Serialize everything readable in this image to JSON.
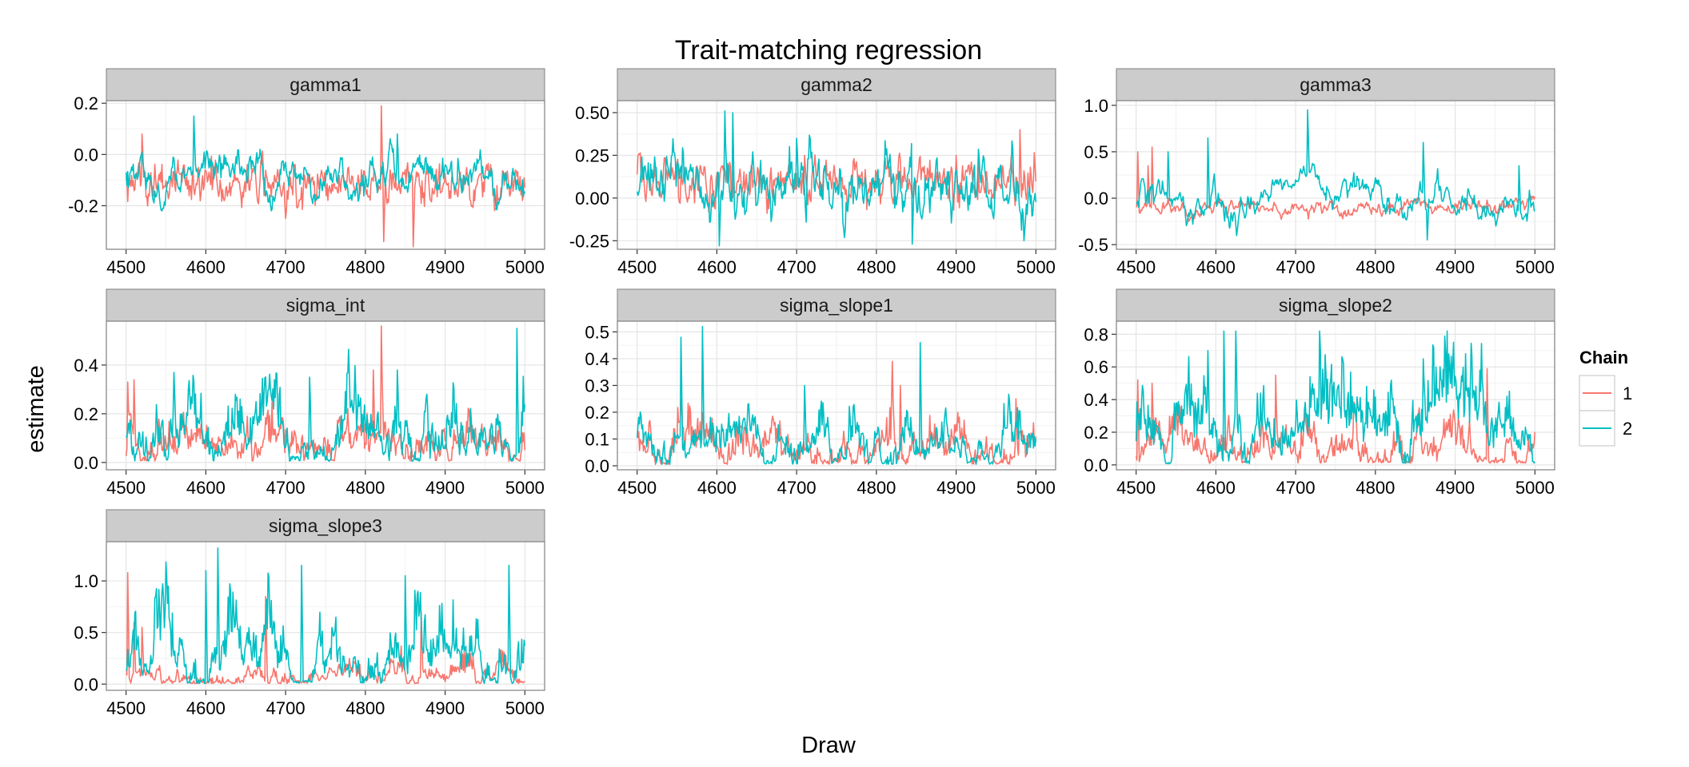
{
  "chart_data": {
    "type": "line",
    "title": "Trait-matching regression",
    "xlabel": "Draw",
    "ylabel": "estimate",
    "xlim": [
      4500,
      5000
    ],
    "x_ticks": [
      4500,
      4600,
      4700,
      4800,
      4900,
      5000
    ],
    "grid": true,
    "legend": {
      "title": "Chain",
      "placement": "right",
      "entries": [
        {
          "name": "1",
          "color": "#F8766D"
        },
        {
          "name": "2",
          "color": "#00BFC4"
        }
      ]
    },
    "panels": [
      {
        "name": "gamma1",
        "ylim": [
          -0.37,
          0.21
        ],
        "y_ticks": [
          0.2,
          0.0,
          -0.2
        ],
        "y_tick_labels": [
          "0.2",
          "0.0",
          "-0.2"
        ],
        "series": [
          {
            "name": "1",
            "mean": -0.11,
            "sd": 0.045,
            "min": -0.36,
            "max": 0.19,
            "rho": 0.6,
            "spikes": [
              [
                4520,
                0.08
              ],
              [
                4820,
                0.19
              ],
              [
                4823,
                -0.34
              ],
              [
                4860,
                -0.36
              ],
              [
                4700,
                -0.25
              ]
            ]
          },
          {
            "name": "2",
            "mean": -0.07,
            "sd": 0.06,
            "min": -0.22,
            "max": 0.16,
            "rho": 0.9,
            "spikes": [
              [
                4585,
                0.15
              ],
              [
                4840,
                0.08
              ]
            ]
          }
        ]
      },
      {
        "name": "gamma2",
        "ylim": [
          -0.3,
          0.57
        ],
        "y_ticks": [
          0.5,
          0.25,
          0.0,
          -0.25
        ],
        "y_tick_labels": [
          "0.50",
          "0.25",
          "0.00",
          "-0.25"
        ],
        "series": [
          {
            "name": "1",
            "mean": 0.1,
            "sd": 0.07,
            "min": -0.18,
            "max": 0.4,
            "rho": 0.6,
            "spikes": [
              [
                4980,
                0.4
              ],
              [
                4710,
                0.25
              ],
              [
                4900,
                0.25
              ]
            ]
          },
          {
            "name": "2",
            "mean": 0.06,
            "sd": 0.09,
            "min": -0.28,
            "max": 0.51,
            "rho": 0.7,
            "spikes": [
              [
                4610,
                0.51
              ],
              [
                4620,
                0.5
              ],
              [
                4603,
                -0.28
              ],
              [
                4845,
                -0.27
              ],
              [
                4985,
                -0.25
              ],
              [
                4700,
                0.35
              ]
            ]
          }
        ]
      },
      {
        "name": "gamma3",
        "ylim": [
          -0.55,
          1.05
        ],
        "y_ticks": [
          1.0,
          0.5,
          0.0,
          -0.5
        ],
        "y_tick_labels": [
          "1.0",
          "0.5",
          "0.0",
          "-0.5"
        ],
        "series": [
          {
            "name": "1",
            "mean": -0.1,
            "sd": 0.05,
            "min": -0.3,
            "max": 0.55,
            "rho": 0.8,
            "spikes": [
              [
                4502,
                0.5
              ],
              [
                4520,
                0.55
              ],
              [
                4515,
                0.35
              ]
            ]
          },
          {
            "name": "2",
            "mean": 0.0,
            "sd": 0.15,
            "min": -0.45,
            "max": 0.95,
            "rho": 0.93,
            "spikes": [
              [
                4715,
                0.95
              ],
              [
                4590,
                0.65
              ],
              [
                4860,
                0.6
              ],
              [
                4980,
                0.35
              ],
              [
                4865,
                -0.45
              ],
              [
                4540,
                0.5
              ]
            ]
          }
        ]
      },
      {
        "name": "sigma_int",
        "ylim": [
          -0.03,
          0.58
        ],
        "y_ticks": [
          0.0,
          0.2,
          0.4
        ],
        "y_tick_labels": [
          "0.0",
          "0.2",
          "0.4"
        ],
        "series": [
          {
            "name": "1",
            "mean": 0.08,
            "sd": 0.06,
            "min": 0.005,
            "max": 0.56,
            "rho": 0.9,
            "spikes": [
              [
                4820,
                0.56
              ],
              [
                4810,
                0.38
              ],
              [
                4502,
                0.33
              ],
              [
                4510,
                0.34
              ]
            ]
          },
          {
            "name": "2",
            "mean": 0.13,
            "sd": 0.08,
            "min": 0.005,
            "max": 0.55,
            "rho": 0.92,
            "spikes": [
              [
                4990,
                0.55
              ],
              [
                4560,
                0.37
              ],
              [
                4840,
                0.38
              ],
              [
                4730,
                0.35
              ]
            ]
          }
        ]
      },
      {
        "name": "sigma_slope1",
        "ylim": [
          -0.015,
          0.54
        ],
        "y_ticks": [
          0.0,
          0.1,
          0.2,
          0.3,
          0.4,
          0.5
        ],
        "y_tick_labels": [
          "0.0",
          "0.1",
          "0.2",
          "0.3",
          "0.4",
          "0.5"
        ],
        "series": [
          {
            "name": "1",
            "mean": 0.08,
            "sd": 0.05,
            "min": 0.005,
            "max": 0.4,
            "rho": 0.9,
            "spikes": [
              [
                4820,
                0.39
              ],
              [
                4830,
                0.3
              ],
              [
                4975,
                0.25
              ]
            ]
          },
          {
            "name": "2",
            "mean": 0.08,
            "sd": 0.06,
            "min": 0.005,
            "max": 0.52,
            "rho": 0.93,
            "spikes": [
              [
                4582,
                0.52
              ],
              [
                4555,
                0.48
              ],
              [
                4855,
                0.46
              ],
              [
                4710,
                0.3
              ]
            ]
          }
        ]
      },
      {
        "name": "sigma_slope2",
        "ylim": [
          -0.03,
          0.88
        ],
        "y_ticks": [
          0.0,
          0.2,
          0.4,
          0.6,
          0.8
        ],
        "y_tick_labels": [
          "0.0",
          "0.2",
          "0.4",
          "0.6",
          "0.8"
        ],
        "series": [
          {
            "name": "1",
            "mean": 0.1,
            "sd": 0.1,
            "min": 0.01,
            "max": 0.6,
            "rho": 0.93,
            "spikes": [
              [
                4940,
                0.59
              ],
              [
                4502,
                0.52
              ],
              [
                4675,
                0.55
              ],
              [
                4520,
                0.5
              ]
            ]
          },
          {
            "name": "2",
            "mean": 0.25,
            "sd": 0.16,
            "min": 0.005,
            "max": 0.82,
            "rho": 0.95,
            "spikes": [
              [
                4610,
                0.82
              ],
              [
                4625,
                0.82
              ],
              [
                4730,
                0.82
              ],
              [
                4590,
                0.7
              ],
              [
                4860,
                0.65
              ]
            ]
          }
        ]
      },
      {
        "name": "sigma_slope3",
        "ylim": [
          -0.06,
          1.38
        ],
        "y_ticks": [
          0.0,
          0.5,
          1.0
        ],
        "y_tick_labels": [
          "0.0",
          "0.5",
          "1.0"
        ],
        "series": [
          {
            "name": "1",
            "mean": 0.06,
            "sd": 0.08,
            "min": 0.005,
            "max": 1.08,
            "rho": 0.93,
            "spikes": [
              [
                4502,
                1.08
              ],
              [
                4510,
                0.6
              ],
              [
                4520,
                0.55
              ],
              [
                4675,
                0.85
              ],
              [
                4870,
                0.7
              ]
            ]
          },
          {
            "name": "2",
            "mean": 0.3,
            "sd": 0.25,
            "min": 0.005,
            "max": 1.32,
            "rho": 0.96,
            "spikes": [
              [
                4615,
                1.32
              ],
              [
                4720,
                1.15
              ],
              [
                4850,
                1.05
              ],
              [
                4980,
                1.15
              ],
              [
                4600,
                1.1
              ]
            ]
          }
        ]
      }
    ]
  }
}
